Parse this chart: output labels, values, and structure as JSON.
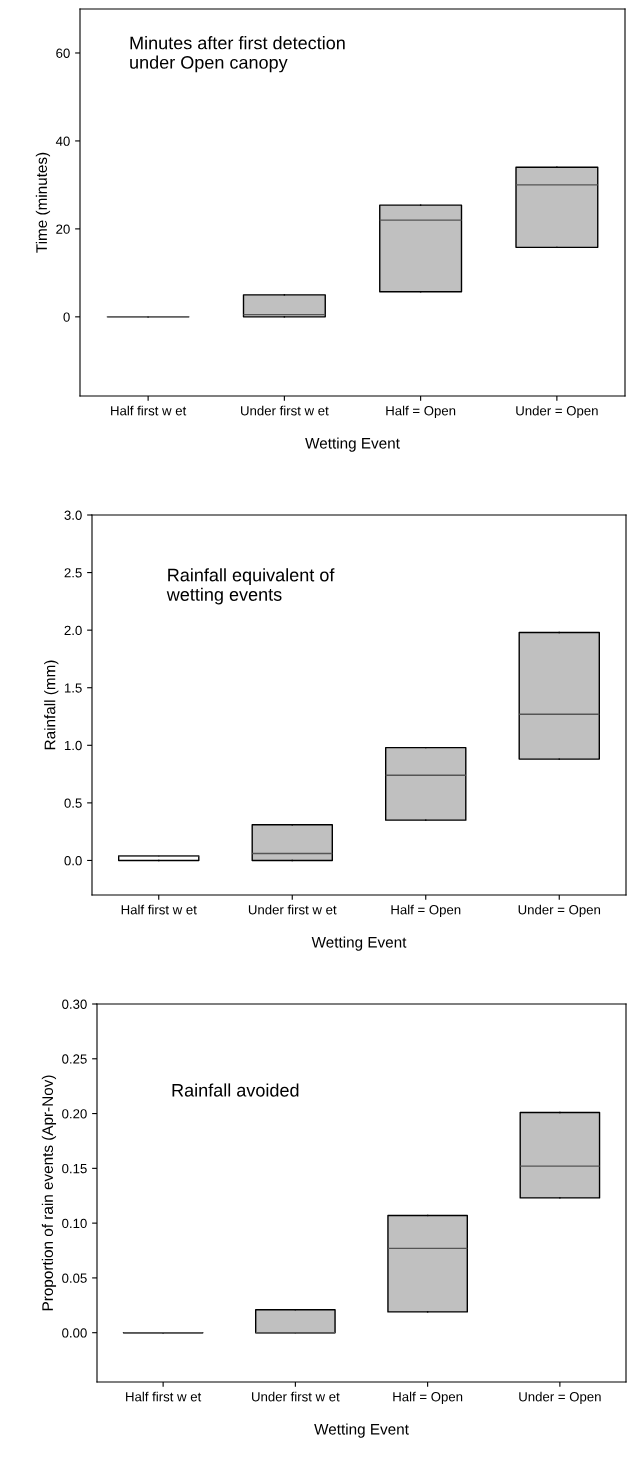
{
  "chart_data": [
    {
      "type": "box",
      "xlabel": "Wetting Event",
      "ylabel": "Time (minutes)",
      "categories": [
        "Half first w et",
        "Under first w et",
        "Half = Open",
        "Under = Open"
      ],
      "boxes": [
        {
          "low": 0,
          "q1": 0,
          "median": 0,
          "q3": 0,
          "high": 0
        },
        {
          "low": 0,
          "q1": 0,
          "median": 0.5,
          "q3": 5,
          "high": 5
        },
        {
          "low": 5.7,
          "q1": 5.7,
          "median": 22,
          "q3": 25.4,
          "high": 25.4
        },
        {
          "low": 15.8,
          "q1": 15.8,
          "median": 30,
          "q3": 34,
          "high": 34
        }
      ],
      "colors": [
        "#666666",
        "#c0c0c0",
        "#c0c0c0",
        "#c0c0c0"
      ],
      "ylim": [
        -18,
        70
      ],
      "yticks": [
        0,
        20,
        40,
        60
      ],
      "grid": false,
      "annotations": [
        "Minutes after first detection\nunder Open canopy"
      ]
    },
    {
      "type": "box",
      "xlabel": "Wetting Event",
      "ylabel": "Rainfall (mm)",
      "categories": [
        "Half first w et",
        "Under first w et",
        "Half = Open",
        "Under = Open"
      ],
      "boxes": [
        {
          "low": 0,
          "q1": 0,
          "median": 0.04,
          "q3": 0.04,
          "high": 0.04
        },
        {
          "low": 0,
          "q1": 0,
          "median": 0.06,
          "q3": 0.31,
          "high": 0.31
        },
        {
          "low": 0.35,
          "q1": 0.35,
          "median": 0.74,
          "q3": 0.98,
          "high": 0.98
        },
        {
          "low": 0.88,
          "q1": 0.88,
          "median": 1.27,
          "q3": 1.98,
          "high": 1.98
        }
      ],
      "colors": [
        "#ffffff",
        "#c0c0c0",
        "#c0c0c0",
        "#c0c0c0"
      ],
      "ylim": [
        -0.3,
        3.0
      ],
      "yticks": [
        {
          "value": 0,
          "label": "0.0"
        },
        0.5,
        {
          "value": 1,
          "label": "1.0"
        },
        1.5,
        {
          "value": 2,
          "label": "2.0"
        },
        2.5,
        {
          "value": 3,
          "label": "3.0"
        }
      ],
      "grid": false,
      "annotations": [
        "Rainfall equivalent of\nwetting events"
      ]
    },
    {
      "type": "box",
      "xlabel": "Wetting Event",
      "ylabel": "Proportion of rain events (Apr-Nov)",
      "categories": [
        "Half first w et",
        "Under first w et",
        "Half = Open",
        "Under = Open"
      ],
      "boxes": [
        {
          "low": 0,
          "q1": 0,
          "median": 0,
          "q3": 0,
          "high": 0
        },
        {
          "low": 0,
          "q1": 0,
          "median": 0,
          "q3": 0.021,
          "high": 0.021
        },
        {
          "low": 0.019,
          "q1": 0.019,
          "median": 0.077,
          "q3": 0.107,
          "high": 0.107
        },
        {
          "low": 0.123,
          "q1": 0.123,
          "median": 0.152,
          "q3": 0.201,
          "high": 0.201
        }
      ],
      "colors": [
        "#000000",
        "#c0c0c0",
        "#c0c0c0",
        "#c0c0c0"
      ],
      "ylim": [
        -0.045,
        0.3
      ],
      "yticks": [
        {
          "value": 0,
          "label": "0.00"
        },
        0.05,
        {
          "value": 0.1,
          "label": "0.10"
        },
        0.15,
        {
          "value": 0.2,
          "label": "0.20"
        },
        0.25,
        {
          "value": 0.3,
          "label": "0.30"
        }
      ],
      "grid": false,
      "annotations": [
        "Rainfall avoided"
      ]
    }
  ]
}
